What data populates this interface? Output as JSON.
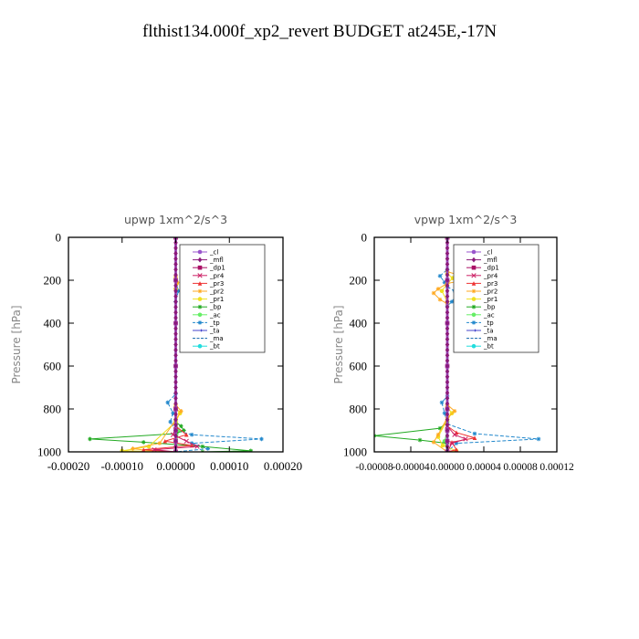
{
  "figure": {
    "title": "flthist134.000f_xp2_revert  BUDGET at245E,-17N"
  },
  "chart_data": [
    {
      "type": "line",
      "title": "upwp   1xm^2/s^3",
      "xlabel": "",
      "ylabel": "Pressure [hPa]",
      "xlim": [
        -0.0002,
        0.0002
      ],
      "ylim": [
        1000,
        0
      ],
      "xticks": [
        "-0.00020",
        "-0.00010",
        "0.00000",
        "0.00010",
        "0.00020"
      ],
      "xtick_values": [
        -0.0002,
        -0.0001,
        0.0,
        0.0001,
        0.0002
      ],
      "yticks": [
        "0",
        "200",
        "400",
        "600",
        "800",
        "1000"
      ],
      "ytick_values": [
        0,
        200,
        400,
        600,
        800,
        1000
      ],
      "legend_position": "top-right",
      "series": [
        {
          "name": "_cl",
          "color": "#9955cc",
          "marker": "circle",
          "points": [
            [
              0,
              0
            ],
            [
              0,
              200
            ],
            [
              0,
              400
            ],
            [
              0,
              600
            ],
            [
              0,
              800
            ],
            [
              0,
              900
            ],
            [
              0,
              950
            ],
            [
              0,
              1000
            ]
          ]
        },
        {
          "name": "_mfl",
          "color": "#8b1a7a",
          "marker": "diamond",
          "points": [
            [
              0,
              0
            ],
            [
              0,
              200
            ],
            [
              0,
              400
            ],
            [
              0,
              600
            ],
            [
              0,
              800
            ],
            [
              0,
              900
            ],
            [
              0,
              950
            ],
            [
              0,
              1000
            ]
          ]
        },
        {
          "name": "_dp1",
          "color": "#aa1166",
          "marker": "square",
          "points": [
            [
              0,
              0
            ],
            [
              0,
              200
            ],
            [
              0,
              400
            ],
            [
              0,
              600
            ],
            [
              0,
              800
            ],
            [
              0,
              900
            ],
            [
              0,
              950
            ],
            [
              0,
              1000
            ]
          ]
        },
        {
          "name": "_pr4",
          "color": "#cc2266",
          "marker": "cross",
          "points": [
            [
              0,
              0
            ],
            [
              0,
              800
            ],
            [
              0,
              880
            ],
            [
              -5e-06,
              920
            ],
            [
              2e-05,
              950
            ],
            [
              4e-05,
              975
            ],
            [
              -4e-05,
              990
            ],
            [
              0,
              1000
            ]
          ]
        },
        {
          "name": "_pr3",
          "color": "#ee3333",
          "marker": "tri",
          "points": [
            [
              0,
              0
            ],
            [
              0,
              800
            ],
            [
              0,
              880
            ],
            [
              2e-05,
              920
            ],
            [
              -2e-05,
              950
            ],
            [
              3e-05,
              970
            ],
            [
              -6e-05,
              990
            ],
            [
              0,
              1000
            ]
          ]
        },
        {
          "name": "_pr2",
          "color": "#ffaa22",
          "marker": "star",
          "points": [
            [
              0,
              0
            ],
            [
              0,
              180
            ],
            [
              3e-06,
              210
            ],
            [
              0,
              240
            ],
            [
              0,
              780
            ],
            [
              1e-05,
              810
            ],
            [
              0,
              850
            ],
            [
              -3e-05,
              960
            ],
            [
              -8e-05,
              985
            ],
            [
              -3e-05,
              1000
            ]
          ]
        },
        {
          "name": "_pr1",
          "color": "#f0e020",
          "marker": "circle",
          "points": [
            [
              0,
              0
            ],
            [
              0,
              190
            ],
            [
              2e-06,
              215
            ],
            [
              0,
              240
            ],
            [
              0,
              790
            ],
            [
              8e-06,
              820
            ],
            [
              0,
              860
            ],
            [
              -5e-05,
              975
            ],
            [
              -0.0001,
              995
            ],
            [
              0,
              1000
            ]
          ]
        },
        {
          "name": "_bp",
          "color": "#22aa22",
          "marker": "star",
          "points": [
            [
              0,
              0
            ],
            [
              0,
              800
            ],
            [
              0,
              860
            ],
            [
              1e-05,
              880
            ],
            [
              1.5e-05,
              900
            ],
            [
              0,
              915
            ],
            [
              -0.00016,
              940
            ],
            [
              -6e-05,
              955
            ],
            [
              5e-05,
              975
            ],
            [
              0.00014,
              995
            ],
            [
              5e-05,
              1000
            ]
          ]
        },
        {
          "name": "_ac",
          "color": "#66ee66",
          "marker": "circle",
          "points": [
            [
              0,
              0
            ],
            [
              0,
              850
            ],
            [
              5e-06,
              900
            ],
            [
              0,
              1000
            ]
          ]
        },
        {
          "name": "_tp",
          "color": "#2288cc",
          "marker": "star",
          "points": [
            [
              0,
              0
            ],
            [
              0,
              200
            ],
            [
              5e-06,
              250
            ],
            [
              0,
              300
            ],
            [
              0,
              730
            ],
            [
              -1.5e-05,
              770
            ],
            [
              -5e-06,
              820
            ],
            [
              -1e-05,
              860
            ],
            [
              0,
              900
            ],
            [
              3e-05,
              920
            ],
            [
              0.00016,
              940
            ],
            [
              3e-05,
              960
            ],
            [
              6e-05,
              985
            ],
            [
              0,
              1000
            ]
          ]
        },
        {
          "name": "_ta",
          "color": "#4444cc",
          "marker": "arrow",
          "points": [
            [
              0,
              0
            ],
            [
              0,
              1000
            ]
          ]
        },
        {
          "name": "_ma",
          "color": "#1166aa",
          "marker": "line",
          "points": [
            [
              0,
              0
            ],
            [
              0,
              1000
            ]
          ]
        },
        {
          "name": "_bt",
          "color": "#22dddd",
          "marker": "circle",
          "points": [
            [
              0,
              0
            ],
            [
              0,
              1000
            ]
          ]
        }
      ]
    },
    {
      "type": "line",
      "title": "vpwp   1xm^2/s^3",
      "xlabel": "",
      "ylabel": "Pressure [hPa]",
      "xlim": [
        -8e-05,
        0.00012
      ],
      "ylim": [
        1000,
        0
      ],
      "xticks": [
        "-0.00008",
        "-0.00004",
        "0.00000",
        "0.00004",
        "0.00008",
        "0.00012"
      ],
      "xtick_values": [
        -8e-05,
        -4e-05,
        0.0,
        4e-05,
        8e-05,
        0.00012
      ],
      "yticks": [
        "0",
        "200",
        "400",
        "600",
        "800",
        "1000"
      ],
      "ytick_values": [
        0,
        200,
        400,
        600,
        800,
        1000
      ],
      "legend_position": "top-right",
      "series": [
        {
          "name": "_cl",
          "color": "#9955cc",
          "marker": "circle",
          "points": [
            [
              0,
              0
            ],
            [
              0,
              200
            ],
            [
              0,
              400
            ],
            [
              0,
              600
            ],
            [
              0,
              800
            ],
            [
              0,
              900
            ],
            [
              0,
              950
            ],
            [
              0,
              1000
            ]
          ]
        },
        {
          "name": "_mfl",
          "color": "#8b1a7a",
          "marker": "diamond",
          "points": [
            [
              0,
              0
            ],
            [
              0,
              200
            ],
            [
              0,
              400
            ],
            [
              0,
              600
            ],
            [
              0,
              800
            ],
            [
              0,
              900
            ],
            [
              0,
              950
            ],
            [
              0,
              1000
            ]
          ]
        },
        {
          "name": "_dp1",
          "color": "#aa1166",
          "marker": "square",
          "points": [
            [
              0,
              0
            ],
            [
              0,
              200
            ],
            [
              0,
              400
            ],
            [
              0,
              600
            ],
            [
              0,
              800
            ],
            [
              0,
              900
            ],
            [
              0,
              950
            ],
            [
              0,
              1000
            ]
          ]
        },
        {
          "name": "_pr4",
          "color": "#cc2266",
          "marker": "cross",
          "points": [
            [
              0,
              0
            ],
            [
              0,
              880
            ],
            [
              8e-06,
              920
            ],
            [
              2e-05,
              940
            ],
            [
              5e-06,
              960
            ],
            [
              0,
              1000
            ]
          ]
        },
        {
          "name": "_pr3",
          "color": "#ee3333",
          "marker": "tri",
          "points": [
            [
              0,
              0
            ],
            [
              0,
              880
            ],
            [
              1e-05,
              910
            ],
            [
              3e-05,
              935
            ],
            [
              5e-06,
              955
            ],
            [
              1e-05,
              990
            ],
            [
              0,
              1000
            ]
          ]
        },
        {
          "name": "_pr2",
          "color": "#ffaa22",
          "marker": "star",
          "points": [
            [
              0,
              0
            ],
            [
              0,
              160
            ],
            [
              1.2e-05,
              175
            ],
            [
              2e-05,
              190
            ],
            [
              1.2e-05,
              205
            ],
            [
              0,
              215
            ],
            [
              -1e-05,
              240
            ],
            [
              -1.5e-05,
              260
            ],
            [
              -8e-06,
              290
            ],
            [
              0,
              310
            ],
            [
              0,
              780
            ],
            [
              8e-06,
              810
            ],
            [
              0,
              840
            ],
            [
              -1e-05,
              920
            ],
            [
              -1.5e-05,
              955
            ],
            [
              0,
              1000
            ]
          ]
        },
        {
          "name": "_pr1",
          "color": "#f0e020",
          "marker": "circle",
          "points": [
            [
              0,
              0
            ],
            [
              0,
              170
            ],
            [
              6e-06,
              190
            ],
            [
              0,
              215
            ],
            [
              -6e-06,
              250
            ],
            [
              0,
              300
            ],
            [
              0,
              790
            ],
            [
              5e-06,
              820
            ],
            [
              0,
              850
            ],
            [
              -1e-05,
              930
            ],
            [
              -5e-06,
              970
            ],
            [
              1e-05,
              995
            ],
            [
              0,
              1000
            ]
          ]
        },
        {
          "name": "_bp",
          "color": "#22aa22",
          "marker": "star",
          "points": [
            [
              0,
              0
            ],
            [
              0,
              860
            ],
            [
              -8e-06,
              890
            ],
            [
              -8e-05,
              925
            ],
            [
              -3e-05,
              945
            ],
            [
              0,
              960
            ],
            [
              0,
              1000
            ]
          ]
        },
        {
          "name": "_ac",
          "color": "#66ee66",
          "marker": "circle",
          "points": [
            [
              0,
              0
            ],
            [
              0,
              900
            ],
            [
              -3e-06,
              950
            ],
            [
              0,
              1000
            ]
          ]
        },
        {
          "name": "_tp",
          "color": "#2288cc",
          "marker": "star",
          "points": [
            [
              0,
              0
            ],
            [
              0,
              150
            ],
            [
              -8e-06,
              180
            ],
            [
              -3e-06,
              210
            ],
            [
              0,
              230
            ],
            [
              8e-06,
              250
            ],
            [
              1e-05,
              270
            ],
            [
              5e-06,
              300
            ],
            [
              0,
              320
            ],
            [
              0,
              740
            ],
            [
              -6e-06,
              770
            ],
            [
              -3e-06,
              820
            ],
            [
              0,
              870
            ],
            [
              3e-05,
              915
            ],
            [
              0.0001,
              940
            ],
            [
              1e-05,
              960
            ],
            [
              0,
              1000
            ]
          ]
        },
        {
          "name": "_ta",
          "color": "#4444cc",
          "marker": "arrow",
          "points": [
            [
              0,
              0
            ],
            [
              0,
              1000
            ]
          ]
        },
        {
          "name": "_ma",
          "color": "#1166aa",
          "marker": "line",
          "points": [
            [
              0,
              0
            ],
            [
              0,
              1000
            ]
          ]
        },
        {
          "name": "_bt",
          "color": "#22dddd",
          "marker": "circle",
          "points": [
            [
              0,
              0
            ],
            [
              0,
              1000
            ]
          ]
        }
      ]
    }
  ]
}
